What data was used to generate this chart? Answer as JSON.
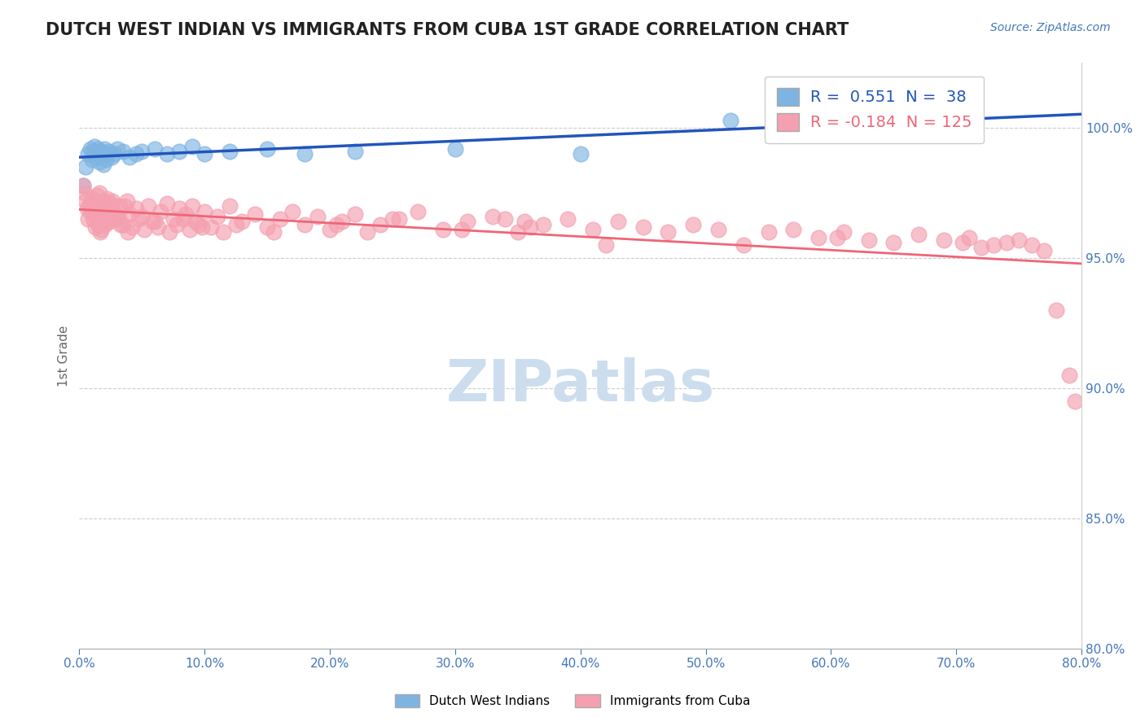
{
  "title": "DUTCH WEST INDIAN VS IMMIGRANTS FROM CUBA 1ST GRADE CORRELATION CHART",
  "source": "Source: ZipAtlas.com",
  "ylabel": "1st Grade",
  "right_yticks": [
    80.0,
    85.0,
    90.0,
    95.0,
    100.0
  ],
  "right_ytick_labels": [
    "80.0%",
    "85.0%",
    "90.0%",
    "95.0%",
    "100.0%"
  ],
  "xmin": 0.0,
  "xmax": 80.0,
  "ymin": 80.0,
  "ymax": 102.5,
  "blue_R": 0.551,
  "blue_N": 38,
  "pink_R": -0.184,
  "pink_N": 125,
  "blue_color": "#7EB4E2",
  "pink_color": "#F4A0B0",
  "blue_line_color": "#2255BB",
  "pink_line_color": "#EE6677",
  "title_color": "#222222",
  "axis_color": "#4477BB",
  "watermark_color": "#CCDDEE",
  "legend_label_blue": "Dutch West Indians",
  "legend_label_pink": "Immigrants from Cuba",
  "blue_scatter_x": [
    0.3,
    0.5,
    0.7,
    0.9,
    1.0,
    1.1,
    1.2,
    1.3,
    1.4,
    1.5,
    1.6,
    1.7,
    1.8,
    1.9,
    2.0,
    2.1,
    2.2,
    2.4,
    2.6,
    2.8,
    3.0,
    3.5,
    4.0,
    4.5,
    5.0,
    6.0,
    7.0,
    8.0,
    9.0,
    10.0,
    12.0,
    15.0,
    18.0,
    22.0,
    30.0,
    40.0,
    52.0,
    66.0
  ],
  "blue_scatter_y": [
    97.8,
    98.5,
    99.0,
    99.2,
    98.8,
    99.1,
    99.3,
    98.9,
    99.0,
    99.2,
    98.7,
    99.1,
    99.0,
    98.6,
    99.2,
    98.8,
    99.0,
    99.1,
    98.9,
    99.0,
    99.2,
    99.1,
    98.9,
    99.0,
    99.1,
    99.2,
    99.0,
    99.1,
    99.3,
    99.0,
    99.1,
    99.2,
    99.0,
    99.1,
    99.2,
    99.0,
    100.3,
    100.6
  ],
  "pink_scatter_x": [
    0.3,
    0.4,
    0.5,
    0.6,
    0.7,
    0.8,
    0.9,
    1.0,
    1.1,
    1.2,
    1.3,
    1.4,
    1.5,
    1.6,
    1.7,
    1.8,
    1.9,
    2.0,
    2.1,
    2.2,
    2.3,
    2.5,
    2.7,
    3.0,
    3.2,
    3.5,
    3.8,
    4.0,
    4.5,
    5.0,
    5.5,
    6.0,
    6.5,
    7.0,
    7.5,
    8.0,
    8.5,
    9.0,
    9.5,
    10.0,
    11.0,
    12.0,
    13.0,
    14.0,
    15.0,
    16.0,
    17.0,
    18.0,
    19.0,
    20.0,
    21.0,
    22.0,
    23.0,
    24.0,
    25.0,
    27.0,
    29.0,
    31.0,
    33.0,
    35.0,
    37.0,
    39.0,
    41.0,
    43.0,
    45.0,
    47.0,
    49.0,
    51.0,
    53.0,
    55.0,
    57.0,
    59.0,
    61.0,
    63.0,
    65.0,
    67.0,
    69.0,
    71.0,
    73.0,
    75.0,
    1.05,
    1.25,
    1.45,
    1.65,
    1.85,
    2.05,
    2.25,
    2.45,
    2.65,
    2.85,
    3.1,
    3.3,
    3.6,
    3.9,
    4.2,
    4.7,
    5.2,
    5.8,
    6.3,
    7.2,
    7.8,
    8.3,
    8.8,
    9.3,
    10.5,
    15.5,
    20.5,
    25.5,
    30.5,
    35.5,
    9.8,
    11.5,
    12.5,
    34.0,
    42.0,
    60.5,
    70.5,
    72.0,
    74.0,
    76.0,
    77.0,
    78.0,
    79.0,
    79.5,
    36.0
  ],
  "pink_scatter_y": [
    97.8,
    97.5,
    97.2,
    96.9,
    96.5,
    97.0,
    96.8,
    97.3,
    96.9,
    97.1,
    96.6,
    97.4,
    96.3,
    97.5,
    96.1,
    97.0,
    96.7,
    97.2,
    96.4,
    97.3,
    96.9,
    97.1,
    96.8,
    96.5,
    97.0,
    96.3,
    97.2,
    96.7,
    96.9,
    96.6,
    97.0,
    96.4,
    96.8,
    97.1,
    96.5,
    96.9,
    96.7,
    97.0,
    96.3,
    96.8,
    96.6,
    97.0,
    96.4,
    96.7,
    96.2,
    96.5,
    96.8,
    96.3,
    96.6,
    96.1,
    96.4,
    96.7,
    96.0,
    96.3,
    96.5,
    96.8,
    96.1,
    96.4,
    96.6,
    96.0,
    96.3,
    96.5,
    96.1,
    96.4,
    96.2,
    96.0,
    96.3,
    96.1,
    95.5,
    96.0,
    96.1,
    95.8,
    96.0,
    95.7,
    95.6,
    95.9,
    95.7,
    95.8,
    95.5,
    95.7,
    96.5,
    96.2,
    96.8,
    96.0,
    97.1,
    96.3,
    96.7,
    96.4,
    97.2,
    96.5,
    96.6,
    96.3,
    97.0,
    96.0,
    96.2,
    96.5,
    96.1,
    96.4,
    96.2,
    96.0,
    96.3,
    96.5,
    96.1,
    96.4,
    96.2,
    96.0,
    96.3,
    96.5,
    96.1,
    96.4,
    96.2,
    96.0,
    96.3,
    96.5,
    95.5,
    95.8,
    95.6,
    95.4,
    95.6,
    95.5,
    95.3,
    93.0,
    90.5,
    89.5,
    96.2
  ]
}
